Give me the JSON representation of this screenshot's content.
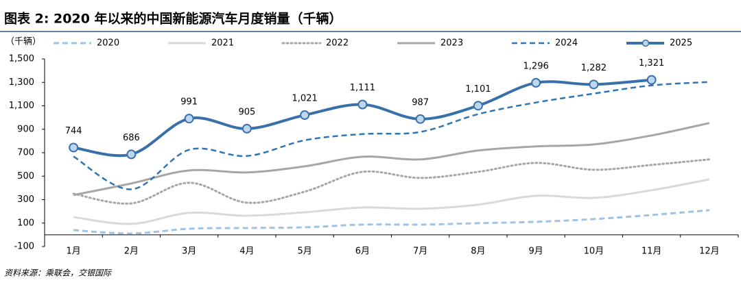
{
  "chart_data": {
    "type": "line",
    "title": "图表 2: 2020 年以来的中国新能源汽车月度销量（千辆）",
    "y_label": "（千辆）",
    "source": "资料来源：乘联会，交银国际",
    "categories": [
      "1月",
      "2月",
      "3月",
      "4月",
      "5月",
      "6月",
      "7月",
      "8月",
      "9月",
      "10月",
      "11月",
      "12月"
    ],
    "ylim": [
      -100,
      1500
    ],
    "yticks": [
      -100,
      100,
      300,
      500,
      700,
      900,
      {
        "value": 1100,
        "label": "1,100"
      },
      {
        "value": 1300,
        "label": "1,300"
      },
      {
        "value": 1500,
        "label": "1,500"
      }
    ],
    "series": [
      {
        "name": "2020",
        "color": "#9dc3e6",
        "style": "dashed",
        "width": 3,
        "values": [
          40,
          11,
          52,
          58,
          64,
          87,
          87,
          99,
          111,
          134,
          169,
          210
        ]
      },
      {
        "name": "2021",
        "color": "#d9d9d9",
        "style": "solid",
        "width": 3,
        "values": [
          151,
          93,
          187,
          163,
          192,
          233,
          222,
          257,
          333,
          315,
          380,
          473
        ]
      },
      {
        "name": "2022",
        "color": "#a6a6a6",
        "style": "dotted",
        "width": 3,
        "values": [
          350,
          268,
          444,
          274,
          368,
          537,
          485,
          537,
          613,
          555,
          596,
          643
        ]
      },
      {
        "name": "2023",
        "color": "#a6a6a6",
        "style": "solid",
        "width": 3,
        "values": [
          339,
          438,
          549,
          532,
          584,
          666,
          643,
          719,
          754,
          771,
          847,
          953
        ]
      },
      {
        "name": "2024",
        "color": "#2e75b6",
        "style": "dashed",
        "width": 2.5,
        "values": [
          668,
          388,
          725,
          672,
          806,
          859,
          877,
          1029,
          1128,
          1204,
          1274,
          1303
        ]
      },
      {
        "name": "2025",
        "color": "#3a70aa",
        "style": "solid",
        "width": 4,
        "marker": "circle",
        "marker_color": "#bdd7ee",
        "values": [
          744,
          686,
          991,
          905,
          1021,
          1111,
          987,
          1101,
          1296,
          1282,
          1321,
          null
        ],
        "value_labels": [
          "744",
          "686",
          "991",
          "905",
          "1,021",
          "1,111",
          "987",
          "1,101",
          "1,296",
          "1,282",
          "1,321",
          null
        ]
      }
    ]
  }
}
